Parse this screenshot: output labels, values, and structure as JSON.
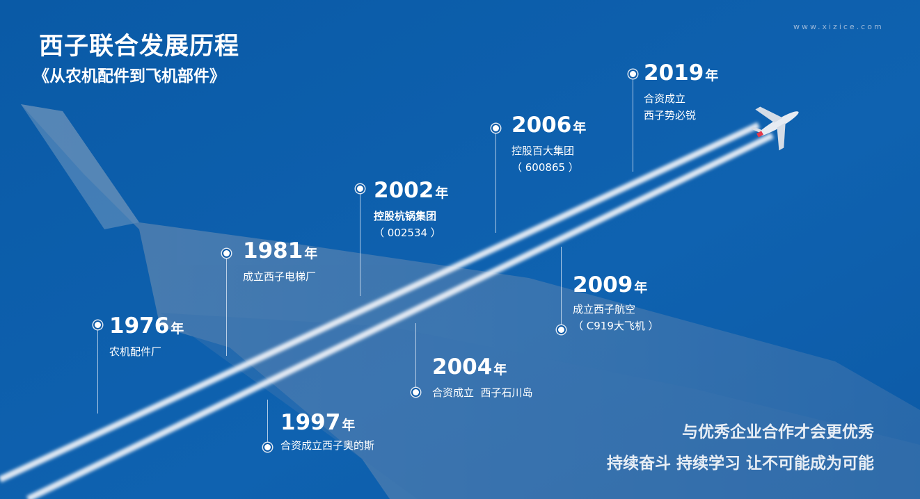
{
  "header": {
    "title": "西子联合发展历程",
    "subtitle": "《从农机配件到飞机部件》",
    "watermark": "www.xizice.com"
  },
  "timeline": [
    {
      "year": "1976",
      "suffix": "年",
      "lines": [
        "农机配件厂"
      ]
    },
    {
      "year": "1981",
      "suffix": "年",
      "lines": [
        "成立西子电梯厂"
      ]
    },
    {
      "year": "1997",
      "suffix": "年",
      "lines": [
        "合资成立西子奥的斯"
      ]
    },
    {
      "year": "2002",
      "suffix": "年",
      "lines": [
        "控股杭锅集团",
        "（ 002534 ）"
      ]
    },
    {
      "year": "2004",
      "suffix": "年",
      "lines": [
        "合资成立  西子石川岛"
      ]
    },
    {
      "year": "2006",
      "suffix": "年",
      "lines": [
        "控股百大集团",
        "（ 600865 ）"
      ]
    },
    {
      "year": "2009",
      "suffix": "年",
      "lines": [
        "成立西子航空",
        "（ C919大飞机 ）"
      ]
    },
    {
      "year": "2019",
      "suffix": "年",
      "lines": [
        "合资成立",
        "西子势必锐"
      ]
    }
  ],
  "slogans": [
    "与优秀企业合作才会更优秀",
    "持续奋斗 持续学习 让不可能成为可能"
  ],
  "colors": {
    "background": "#0b5aa8",
    "text": "#ffffff"
  }
}
